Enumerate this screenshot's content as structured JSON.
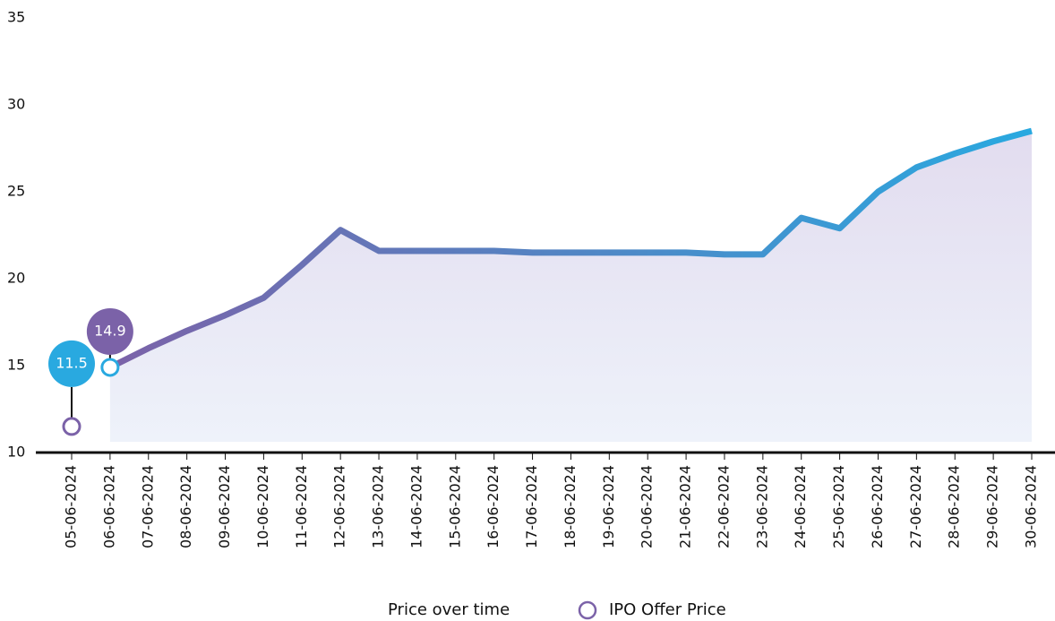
{
  "chart_data": {
    "type": "line",
    "categories": [
      "05-06-2024",
      "06-06-2024",
      "07-06-2024",
      "08-06-2024",
      "09-06-2024",
      "10-06-2024",
      "11-06-2024",
      "12-06-2024",
      "13-06-2024",
      "14-06-2024",
      "15-06-2024",
      "16-06-2024",
      "17-06-2024",
      "18-06-2024",
      "19-06-2024",
      "20-06-2024",
      "21-06-2024",
      "22-06-2024",
      "23-06-2024",
      "24-06-2024",
      "25-06-2024",
      "26-06-2024",
      "27-06-2024",
      "28-06-2024",
      "29-06-2024",
      "30-06-2024"
    ],
    "series": [
      {
        "name": "Price over time",
        "color": "#7b62a8",
        "color_end": "#29a9e0",
        "values": [
          null,
          14.9,
          16.0,
          17.0,
          17.9,
          18.9,
          20.8,
          22.8,
          21.6,
          21.6,
          21.6,
          21.6,
          21.5,
          21.5,
          21.5,
          21.5,
          21.5,
          21.4,
          21.4,
          23.5,
          22.9,
          25.0,
          26.4,
          27.2,
          27.9,
          28.5
        ]
      },
      {
        "name": "IPO Offer Price",
        "color": "#7b62a8",
        "values": [
          11.5,
          null,
          null,
          null,
          null,
          null,
          null,
          null,
          null,
          null,
          null,
          null,
          null,
          null,
          null,
          null,
          null,
          null,
          null,
          null,
          null,
          null,
          null,
          null,
          null,
          null
        ]
      }
    ],
    "ylim": [
      10,
      35
    ],
    "yticks": [
      10,
      15,
      20,
      25,
      30,
      35
    ]
  }
}
